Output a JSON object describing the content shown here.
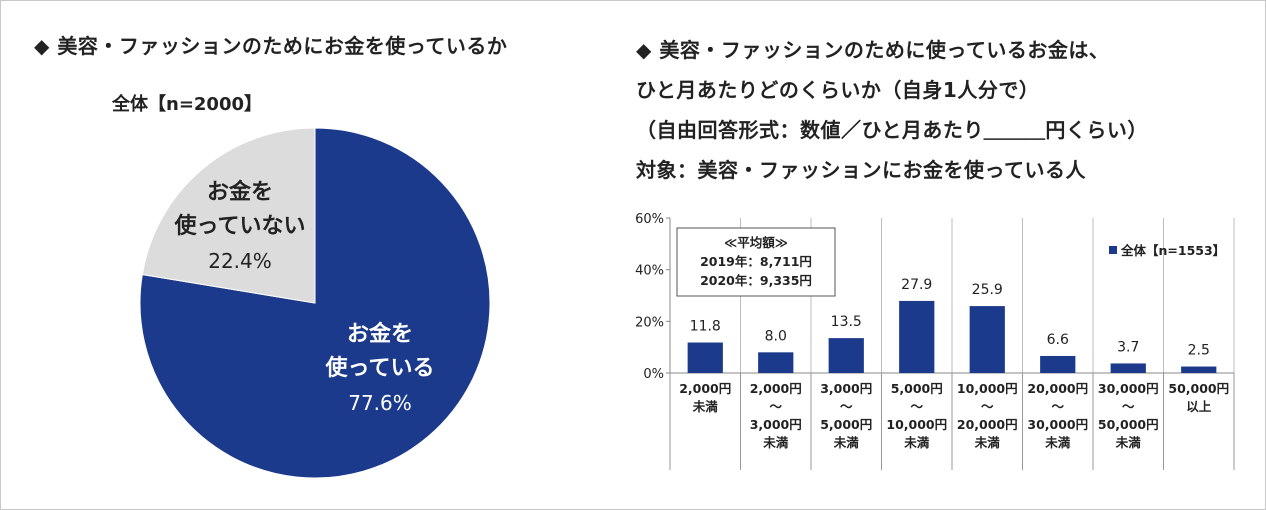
{
  "left_title": "◆ 美容・ファッションのためにお金を使っているか",
  "right_title_lines": [
    "◆ 美容・ファッションのために使っているお金は、",
    "ひと月あたりどのくらいか（自身1人分で）",
    "（自由回答形式：数値／ひと月あたり＿＿＿円くらい）",
    "対象：美容・ファッションにお金を使っている人"
  ],
  "chart_data": [
    {
      "type": "pie",
      "title": "全体【n=2000】",
      "slices": [
        {
          "label_lines": [
            "お金を",
            "使っている"
          ],
          "value": 77.6,
          "value_label": "77.6%",
          "color": "#1c3a8c"
        },
        {
          "label_lines": [
            "お金を",
            "使っていない"
          ],
          "value": 22.4,
          "value_label": "22.4%",
          "color": "#dcdcdc"
        }
      ]
    },
    {
      "type": "bar",
      "series": [
        {
          "name": "全体【n=1553】",
          "color": "#1c3a8c",
          "values": [
            11.8,
            8.0,
            13.5,
            27.9,
            25.9,
            6.6,
            3.7,
            2.5
          ],
          "value_labels": [
            "11.8",
            "8.0",
            "13.5",
            "27.9",
            "25.9",
            "6.6",
            "3.7",
            "2.5"
          ]
        }
      ],
      "categories": [
        [
          "2,000円",
          "未満"
        ],
        [
          "2,000円",
          "～",
          "3,000円",
          "未満"
        ],
        [
          "3,000円",
          "～",
          "5,000円",
          "未満"
        ],
        [
          "5,000円",
          "～",
          "10,000円",
          "未満"
        ],
        [
          "10,000円",
          "～",
          "20,000円",
          "未満"
        ],
        [
          "20,000円",
          "～",
          "30,000円",
          "未満"
        ],
        [
          "30,000円",
          "～",
          "50,000円",
          "未満"
        ],
        [
          "50,000円",
          "以上"
        ]
      ],
      "yticks": [
        "0%",
        "20%",
        "40%",
        "60%"
      ],
      "ylim": [
        0,
        60
      ],
      "annotation_lines": [
        "≪平均額≫",
        "2019年：8,711円",
        "2020年：9,335円"
      ],
      "legend_position": "top-right"
    }
  ]
}
